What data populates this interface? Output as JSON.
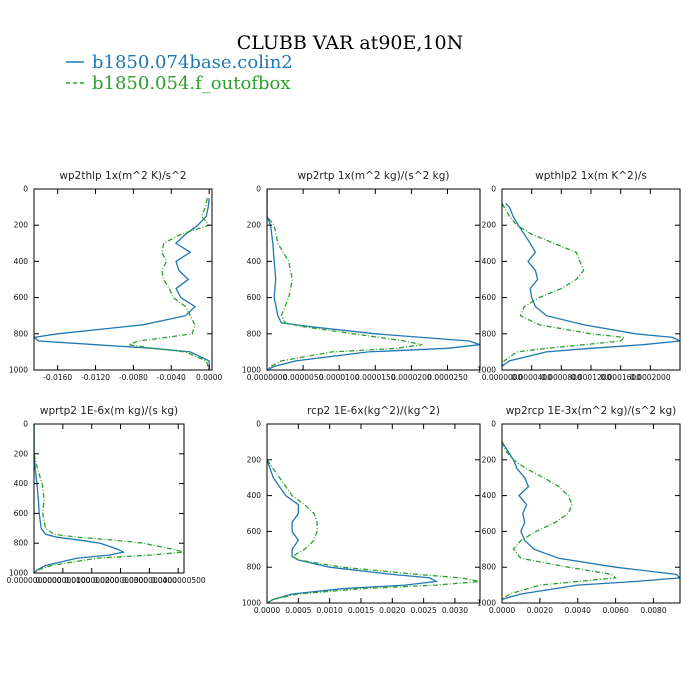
{
  "figure": {
    "title": "CLUBB VAR at90E,10N",
    "legend": [
      {
        "name": "b1850.074base.colin2",
        "color": "#1f77b4",
        "dash": "solid"
      },
      {
        "name": "b1850.054.f_outofbox",
        "color": "#2ca02c",
        "dash": "dashed"
      }
    ]
  },
  "chart_data": [
    {
      "type": "line",
      "title": "wp2thlp  1x(m^2 K)/s^2",
      "ylim": [
        1000,
        0
      ],
      "yticks": [
        0,
        200,
        400,
        600,
        800,
        1000
      ],
      "xlim": [
        -0.0185,
        0.0003
      ],
      "xticks": [
        -0.016,
        -0.012,
        -0.008,
        -0.004,
        0.0
      ],
      "xticklabels": [
        "-0.0160",
        "-0.0120",
        "-0.0080",
        "-0.0040",
        "0.0000"
      ],
      "series": [
        {
          "color": "#1f77b4",
          "dash": "solid",
          "y": [
            50,
            100,
            150,
            200,
            250,
            300,
            350,
            400,
            450,
            500,
            550,
            600,
            650,
            700,
            750,
            800,
            820,
            840,
            860,
            880,
            900,
            950,
            1000
          ],
          "x": [
            0.0,
            -0.0001,
            -0.0003,
            -0.0012,
            -0.0025,
            -0.0035,
            -0.002,
            -0.0035,
            -0.0032,
            -0.0022,
            -0.0035,
            -0.003,
            -0.0015,
            -0.0025,
            -0.007,
            -0.016,
            -0.0185,
            -0.018,
            -0.012,
            -0.006,
            -0.002,
            0.0,
            0.0
          ]
        },
        {
          "color": "#2ca02c",
          "dash": "dashed",
          "y": [
            50,
            100,
            150,
            200,
            250,
            300,
            350,
            400,
            450,
            500,
            550,
            600,
            650,
            700,
            750,
            800,
            820,
            840,
            860,
            880,
            900,
            950,
            1000
          ],
          "x": [
            -0.0002,
            -0.0004,
            -0.0008,
            0.0,
            -0.003,
            -0.0048,
            -0.005,
            -0.0045,
            -0.005,
            -0.0048,
            -0.0042,
            -0.0038,
            -0.0025,
            -0.002,
            -0.0015,
            -0.0018,
            -0.0045,
            -0.0075,
            -0.0085,
            -0.006,
            -0.0025,
            -0.0003,
            0.0
          ]
        }
      ]
    },
    {
      "type": "line",
      "title": "wp2rtp   1x(m^2 kg)/(s^2 kg)",
      "ylim": [
        1000,
        0
      ],
      "yticks": [
        0,
        200,
        400,
        600,
        800,
        1000
      ],
      "xlim": [
        0.0,
        2.95e-05
      ],
      "xticks": [
        0.0,
        5e-06,
        1e-05,
        1.5e-05,
        2e-05,
        2.5e-05
      ],
      "xticklabels": [
        "0.0000000",
        "0.0000050",
        "0.0000100",
        "0.0000150",
        "0.0000200",
        "0.0000250"
      ],
      "series": [
        {
          "color": "#1f77b4",
          "dash": "solid",
          "y": [
            0,
            150,
            200,
            300,
            400,
            500,
            600,
            700,
            740,
            760,
            800,
            840,
            860,
            880,
            900,
            950,
            980,
            1000
          ],
          "x": [
            0.0,
            0.0,
            5e-07,
            8e-07,
            1e-06,
            1.2e-06,
            1e-06,
            1.5e-06,
            2e-06,
            6e-06,
            1.5e-05,
            2.8e-05,
            2.95e-05,
            2.5e-05,
            1.4e-05,
            4e-06,
            1e-06,
            0.0
          ]
        },
        {
          "color": "#2ca02c",
          "dash": "dashed",
          "y": [
            0,
            150,
            200,
            300,
            400,
            500,
            600,
            700,
            740,
            760,
            800,
            840,
            860,
            880,
            900,
            950,
            980,
            1000
          ],
          "x": [
            0.0,
            0.0,
            1e-06,
            1.5e-06,
            3e-06,
            3.5e-06,
            3e-06,
            2e-06,
            2.5e-06,
            5e-06,
            1.2e-05,
            1.9e-05,
            2.15e-05,
            1.8e-05,
            9e-06,
            2e-06,
            5e-07,
            0.0
          ]
        }
      ]
    },
    {
      "type": "line",
      "title": "wpthlp2   1x(m K^2)/s",
      "ylim": [
        1000,
        0
      ],
      "yticks": [
        0,
        200,
        400,
        600,
        800,
        1000
      ],
      "xlim": [
        0.0,
        0.00024
      ],
      "xticks": [
        0.0,
        4e-05,
        8e-05,
        0.00012,
        0.00016,
        0.0002
      ],
      "xticklabels": [
        "0.0000000",
        "0.0000400",
        "0.0000800",
        "0.0001200",
        "0.0001600",
        "0.0002000"
      ],
      "series": [
        {
          "color": "#1f77b4",
          "dash": "solid",
          "y": [
            80,
            100,
            150,
            200,
            250,
            300,
            350,
            400,
            450,
            500,
            550,
            600,
            650,
            700,
            750,
            800,
            820,
            840,
            860,
            880,
            900,
            950,
            980
          ],
          "x": [
            5e-06,
            1e-05,
            1.5e-05,
            2.2e-05,
            3e-05,
            3.8e-05,
            4.5e-05,
            3.5e-05,
            4.5e-05,
            4.8e-05,
            3.8e-05,
            4e-05,
            4.5e-05,
            6e-05,
            0.00011,
            0.00018,
            0.00023,
            0.00024,
            0.00019,
            0.00012,
            6e-05,
            1e-05,
            0.0
          ]
        },
        {
          "color": "#2ca02c",
          "dash": "dashed",
          "y": [
            80,
            100,
            150,
            200,
            250,
            300,
            350,
            400,
            450,
            500,
            550,
            600,
            650,
            700,
            750,
            800,
            820,
            840,
            860,
            880,
            900,
            950,
            980
          ],
          "x": [
            0.0,
            3e-06,
            1e-05,
            2e-05,
            4e-05,
            7e-05,
            0.0001,
            0.000105,
            0.00011,
            0.0001,
            8e-05,
            5e-05,
            3e-05,
            2.5e-05,
            5e-05,
            0.00012,
            0.000165,
            0.00016,
            0.00011,
            6e-05,
            2e-05,
            3e-06,
            0.0
          ]
        }
      ]
    },
    {
      "type": "line",
      "title": "wprtp2   1E-6x(m kg)/(s kg)",
      "ylim": [
        1000,
        0
      ],
      "yticks": [
        0,
        200,
        400,
        600,
        800,
        1000
      ],
      "xlim": [
        0.0,
        5.2e-08
      ],
      "xticks": [
        0.0,
        1e-08,
        2e-08,
        3e-08,
        4e-08,
        5e-08
      ],
      "xticklabels": [
        "0.0000000000",
        "0.0000000100",
        "0.0000000200",
        "0.0000000300",
        "0.0000000400",
        "0.0000000500"
      ],
      "series": [
        {
          "color": "#1f77b4",
          "dash": "solid",
          "y": [
            0,
            200,
            300,
            400,
            500,
            600,
            700,
            740,
            760,
            780,
            800,
            840,
            860,
            880,
            900,
            950,
            980,
            1000
          ],
          "x": [
            0.0,
            0.0,
            4e-10,
            1e-09,
            1.5e-09,
            1.8e-09,
            2.5e-09,
            4e-09,
            8e-09,
            1.6e-08,
            2.3e-08,
            2.9e-08,
            3.1e-08,
            2.6e-08,
            1.5e-08,
            4e-09,
            1e-09,
            0.0
          ]
        },
        {
          "color": "#2ca02c",
          "dash": "dashed",
          "y": [
            0,
            200,
            300,
            400,
            500,
            600,
            700,
            740,
            760,
            780,
            800,
            840,
            860,
            880,
            900,
            950,
            980,
            1000
          ],
          "x": [
            0.0,
            0.0,
            1.2e-09,
            2.8e-09,
            3.5e-09,
            3e-09,
            4e-09,
            7e-09,
            1.5e-08,
            2.8e-08,
            3.8e-08,
            4.8e-08,
            5.2e-08,
            4e-08,
            2.2e-08,
            6e-09,
            1.5e-09,
            0.0
          ]
        }
      ]
    },
    {
      "type": "line",
      "title": "rcp2   1E-6x(kg^2)/(kg^2)",
      "ylim": [
        1000,
        0
      ],
      "yticks": [
        0,
        200,
        400,
        600,
        800,
        1000
      ],
      "xlim": [
        0.0,
        0.0034
      ],
      "xticks": [
        0.0,
        0.0005,
        0.001,
        0.0015,
        0.002,
        0.0025,
        0.003
      ],
      "xticklabels": [
        "0.0000",
        "0.0005",
        "0.0010",
        "0.0015",
        "0.0020",
        "0.0025",
        "0.0030"
      ],
      "series": [
        {
          "color": "#1f77b4",
          "dash": "solid",
          "y": [
            200,
            300,
            400,
            450,
            500,
            550,
            600,
            650,
            700,
            740,
            760,
            800,
            840,
            860,
            880,
            900,
            920,
            950,
            980,
            1000
          ],
          "x": [
            0.0,
            0.0001,
            0.0003,
            0.0005,
            0.0005,
            0.0004,
            0.0004,
            0.0005,
            0.0004,
            0.0004,
            0.0005,
            0.001,
            0.002,
            0.0026,
            0.0027,
            0.0022,
            0.0012,
            0.0004,
            0.0001,
            0.0
          ]
        },
        {
          "color": "#2ca02c",
          "dash": "dashed",
          "y": [
            200,
            300,
            400,
            450,
            500,
            550,
            600,
            650,
            700,
            740,
            760,
            800,
            840,
            860,
            880,
            900,
            920,
            950,
            980,
            1000
          ],
          "x": [
            0.0,
            0.0002,
            0.0004,
            0.0006,
            0.00075,
            0.0008,
            0.0008,
            0.00075,
            0.0006,
            0.0004,
            0.0005,
            0.0012,
            0.0024,
            0.0031,
            0.0034,
            0.0027,
            0.0015,
            0.0005,
            0.0001,
            0.0
          ]
        }
      ]
    },
    {
      "type": "line",
      "title": "wp2rcp   1E-3x(m^2 kg)/(s^2 kg)",
      "ylim": [
        1000,
        0
      ],
      "yticks": [
        0,
        200,
        400,
        600,
        800,
        1000
      ],
      "xlim": [
        0.0,
        0.0094
      ],
      "xticks": [
        0.0,
        0.002,
        0.004,
        0.006,
        0.008
      ],
      "xticklabels": [
        "0.0000",
        "0.0020",
        "0.0040",
        "0.0060",
        "0.0080"
      ],
      "series": [
        {
          "color": "#1f77b4",
          "dash": "solid",
          "y": [
            100,
            150,
            200,
            250,
            300,
            350,
            400,
            450,
            500,
            550,
            600,
            650,
            700,
            750,
            800,
            840,
            860,
            880,
            900,
            950,
            980
          ],
          "x": [
            0.0,
            0.0003,
            0.0006,
            0.0008,
            0.0012,
            0.0014,
            0.0009,
            0.0013,
            0.0011,
            0.0012,
            0.001,
            0.0012,
            0.0017,
            0.003,
            0.006,
            0.0092,
            0.0094,
            0.007,
            0.004,
            0.001,
            0.0
          ]
        },
        {
          "color": "#2ca02c",
          "dash": "dashed",
          "y": [
            100,
            150,
            200,
            250,
            300,
            350,
            400,
            450,
            500,
            550,
            600,
            650,
            700,
            750,
            800,
            840,
            860,
            880,
            900,
            950,
            980
          ],
          "x": [
            0.0,
            0.0002,
            0.0006,
            0.0013,
            0.0022,
            0.003,
            0.0035,
            0.0037,
            0.0035,
            0.0028,
            0.0018,
            0.001,
            0.0006,
            0.001,
            0.0035,
            0.0058,
            0.006,
            0.004,
            0.002,
            0.0004,
            0.0
          ]
        }
      ]
    }
  ]
}
